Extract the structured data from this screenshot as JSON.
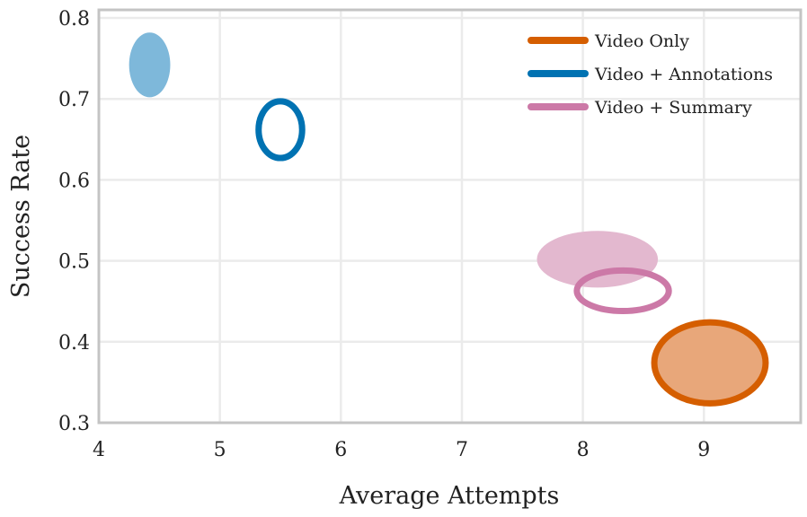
{
  "chart_data": {
    "type": "scatter",
    "title": "",
    "xlabel": "Average Attempts",
    "ylabel": "Success Rate",
    "xlim": [
      4,
      9.8
    ],
    "ylim": [
      0.3,
      0.81
    ],
    "xticks": [
      4,
      5,
      6,
      7,
      8,
      9
    ],
    "yticks": [
      0.3,
      0.4,
      0.5,
      0.6,
      0.7,
      0.8
    ],
    "xtick_labels": [
      "4",
      "5",
      "6",
      "7",
      "8",
      "9"
    ],
    "ytick_labels": [
      "0.3",
      "0.4",
      "0.5",
      "0.6",
      "0.7",
      "0.8"
    ],
    "grid": true,
    "legend_position": "top-right",
    "series": [
      {
        "name": "Video Only",
        "color": "#d55e00",
        "points": [
          {
            "x": 9.05,
            "y": 0.374,
            "x_spread": 0.46,
            "y_spread": 0.05,
            "style": "filled-outlined",
            "fill": "#e8a77a"
          }
        ]
      },
      {
        "name": "Video + Annotations",
        "color": "#0072b2",
        "points": [
          {
            "x": 4.42,
            "y": 0.742,
            "x_spread": 0.17,
            "y_spread": 0.04,
            "style": "filled",
            "fill": "#7eb8da"
          },
          {
            "x": 5.5,
            "y": 0.662,
            "x_spread": 0.18,
            "y_spread": 0.035,
            "style": "outline"
          }
        ]
      },
      {
        "name": "Video + Summary",
        "color": "#cc79a7",
        "points": [
          {
            "x": 8.12,
            "y": 0.502,
            "x_spread": 0.5,
            "y_spread": 0.035,
            "style": "filled",
            "fill": "#e3b8cf"
          },
          {
            "x": 8.33,
            "y": 0.463,
            "x_spread": 0.38,
            "y_spread": 0.025,
            "style": "outline"
          }
        ]
      }
    ]
  }
}
